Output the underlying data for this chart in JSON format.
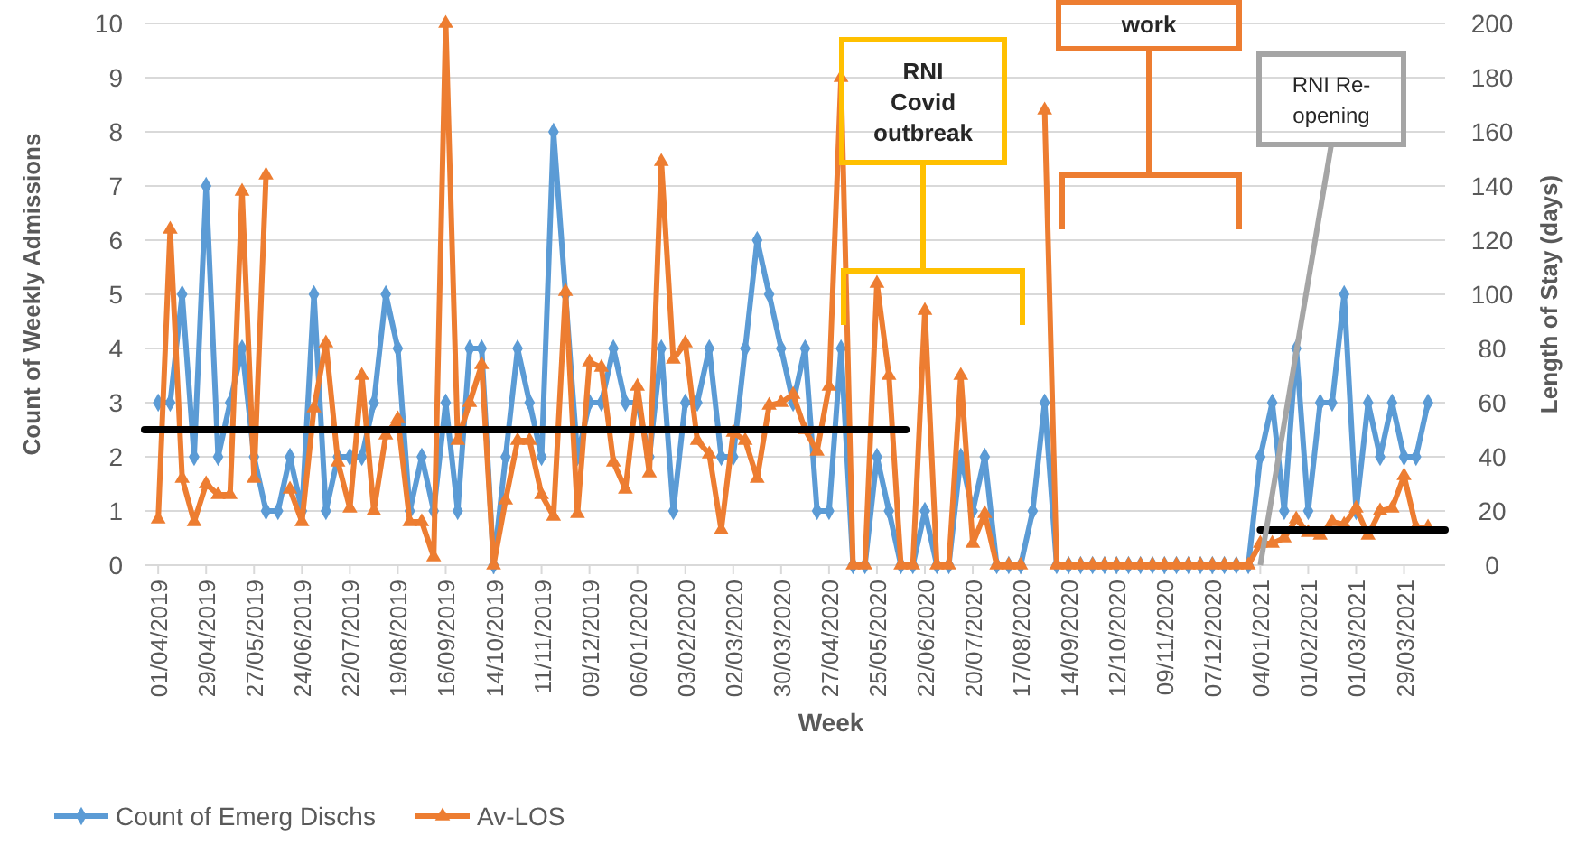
{
  "chart_data": {
    "type": "line",
    "xlabel": "Week",
    "ylabel": "Count of Weekly Admissions",
    "y2label": "Length of Stay (days)",
    "x": [
      "2019-04-01",
      "2019-04-08",
      "2019-04-15",
      "2019-04-22",
      "2019-04-29",
      "2019-05-06",
      "2019-05-13",
      "2019-05-20",
      "2019-05-27",
      "2019-06-03",
      "2019-06-10",
      "2019-06-17",
      "2019-06-24",
      "2019-07-01",
      "2019-07-08",
      "2019-07-15",
      "2019-07-22",
      "2019-07-29",
      "2019-08-05",
      "2019-08-12",
      "2019-08-19",
      "2019-08-26",
      "2019-09-02",
      "2019-09-09",
      "2019-09-16",
      "2019-09-23",
      "2019-09-30",
      "2019-10-07",
      "2019-10-14",
      "2019-10-21",
      "2019-10-28",
      "2019-11-04",
      "2019-11-11",
      "2019-11-18",
      "2019-11-25",
      "2019-12-02",
      "2019-12-09",
      "2019-12-16",
      "2019-12-23",
      "2019-12-30",
      "2020-01-06",
      "2020-01-13",
      "2020-01-20",
      "2020-01-27",
      "2020-02-03",
      "2020-02-10",
      "2020-02-17",
      "2020-02-24",
      "2020-03-02",
      "2020-03-09",
      "2020-03-16",
      "2020-03-23",
      "2020-03-30",
      "2020-04-06",
      "2020-04-13",
      "2020-04-20",
      "2020-04-27",
      "2020-05-04",
      "2020-05-11",
      "2020-05-18",
      "2020-05-25",
      "2020-06-01",
      "2020-06-08",
      "2020-06-15",
      "2020-06-22",
      "2020-06-29",
      "2020-07-06",
      "2020-07-13",
      "2020-07-20",
      "2020-07-27",
      "2020-08-03",
      "2020-08-10",
      "2020-08-17",
      "2020-08-24",
      "2020-08-31",
      "2020-09-07",
      "2020-09-14",
      "2020-09-21",
      "2020-09-28",
      "2020-10-05",
      "2020-10-12",
      "2020-10-19",
      "2020-10-26",
      "2020-11-02",
      "2020-11-09",
      "2020-11-16",
      "2020-11-23",
      "2020-11-30",
      "2020-12-07",
      "2020-12-14",
      "2020-12-21",
      "2020-12-28",
      "2021-01-04",
      "2021-01-11",
      "2021-01-18",
      "2021-01-25",
      "2021-02-01",
      "2021-02-08",
      "2021-02-15",
      "2021-02-22",
      "2021-03-01",
      "2021-03-08",
      "2021-03-15",
      "2021-03-22",
      "2021-03-29",
      "2021-04-05",
      "2021-04-12"
    ],
    "series": [
      {
        "name": "Count of Emerg Dischs",
        "color": "#5b9bd5",
        "marker": "diamond",
        "values": [
          3,
          3,
          5,
          2,
          7,
          2,
          3,
          4,
          2,
          1,
          1,
          2,
          1,
          5,
          1,
          2,
          2,
          2,
          3,
          5,
          4,
          1,
          2,
          1,
          3,
          1,
          4,
          4,
          0,
          2,
          4,
          3,
          2,
          8,
          5,
          2,
          3,
          3,
          4,
          3,
          3,
          2,
          4,
          1,
          3,
          3,
          4,
          2,
          2,
          4,
          6,
          5,
          4,
          3,
          4,
          1,
          1,
          4,
          0,
          0,
          2,
          1,
          0,
          0,
          1,
          0,
          0,
          2,
          1,
          2,
          0,
          0,
          0,
          1,
          3,
          0,
          0,
          0,
          0,
          0,
          0,
          0,
          0,
          0,
          0,
          0,
          0,
          0,
          0,
          0,
          0,
          0,
          2,
          3,
          1,
          4,
          1,
          3,
          3,
          5,
          1,
          3,
          2,
          3,
          2,
          2,
          3
        ]
      },
      {
        "name": "Av-LOS",
        "color": "#ed7d31",
        "marker": "triangle",
        "axis": "y2",
        "values": [
          17,
          124,
          32,
          16,
          30,
          26,
          26,
          138,
          32,
          144,
          null,
          28,
          16,
          58,
          82,
          38,
          21,
          70,
          20,
          48,
          54,
          16,
          16,
          3,
          200,
          46,
          60,
          74,
          0,
          24,
          46,
          46,
          26,
          18,
          101,
          19,
          75,
          73,
          38,
          28,
          66,
          34,
          149,
          76,
          82,
          46,
          41,
          13,
          49,
          46,
          32,
          59,
          60,
          63,
          50,
          42,
          66,
          180,
          0,
          0,
          104,
          70,
          0,
          0,
          94,
          0,
          0,
          70,
          8,
          19,
          0,
          0,
          0,
          null,
          168,
          0,
          0,
          0,
          0,
          0,
          0,
          0,
          0,
          0,
          0,
          0,
          0,
          0,
          0,
          0,
          0,
          0,
          8,
          8,
          10,
          17,
          12,
          11,
          16,
          15,
          21,
          11,
          20,
          21,
          33,
          14,
          14
        ]
      },
      {
        "type": "line",
        "color": "#000000",
        "marker": "none",
        "x": [
          "2019-03-24",
          "2020-06-11"
        ],
        "values": [
          2.5,
          2.5
        ]
      },
      {
        "type": "line",
        "color": "#000000",
        "marker": "none",
        "axis": "y2",
        "x": [
          "2021-01-04",
          "2021-04-22"
        ],
        "values": [
          13,
          13
        ]
      }
    ],
    "xlim": [
      "2019-03-24",
      "2021-04-22"
    ],
    "xticks": [
      {
        "value": "2019-04-01",
        "label": "01/04/2019"
      },
      {
        "value": "2019-04-29",
        "label": "29/04/2019"
      },
      {
        "value": "2019-05-27",
        "label": "27/05/2019"
      },
      {
        "value": "2019-06-24",
        "label": "24/06/2019"
      },
      {
        "value": "2019-07-22",
        "label": "22/07/2019"
      },
      {
        "value": "2019-08-19",
        "label": "19/08/2019"
      },
      {
        "value": "2019-09-16",
        "label": "16/09/2019"
      },
      {
        "value": "2019-10-14",
        "label": "14/10/2019"
      },
      {
        "value": "2019-11-11",
        "label": "11/11/2019"
      },
      {
        "value": "2019-12-09",
        "label": "09/12/2019"
      },
      {
        "value": "2020-01-06",
        "label": "06/01/2020"
      },
      {
        "value": "2020-02-03",
        "label": "03/02/2020"
      },
      {
        "value": "2020-03-02",
        "label": "02/03/2020"
      },
      {
        "value": "2020-03-30",
        "label": "30/03/2020"
      },
      {
        "value": "2020-04-27",
        "label": "27/04/2020"
      },
      {
        "value": "2020-05-25",
        "label": "25/05/2020"
      },
      {
        "value": "2020-06-22",
        "label": "22/06/2020"
      },
      {
        "value": "2020-07-20",
        "label": "20/07/2020"
      },
      {
        "value": "2020-08-17",
        "label": "17/08/2020"
      },
      {
        "value": "2020-09-14",
        "label": "14/09/2020"
      },
      {
        "value": "2020-10-12",
        "label": "12/10/2020"
      },
      {
        "value": "2020-11-09",
        "label": "09/11/2020"
      },
      {
        "value": "2020-12-07",
        "label": "07/12/2020"
      },
      {
        "value": "2021-01-04",
        "label": "04/01/2021"
      },
      {
        "value": "2021-02-01",
        "label": "01/02/2021"
      },
      {
        "value": "2021-03-01",
        "label": "01/03/2021"
      },
      {
        "value": "2021-03-29",
        "label": "29/03/2021"
      }
    ],
    "ylim": [
      0,
      10
    ],
    "yticks": [
      0,
      1,
      2,
      3,
      4,
      5,
      6,
      7,
      8,
      9,
      10
    ],
    "y2lim": [
      0,
      200
    ],
    "y2ticks": [
      0,
      20,
      40,
      60,
      80,
      100,
      120,
      140,
      160,
      180,
      200
    ],
    "grid": "y",
    "legend": "bottom",
    "annotations": [
      "RNI Covid outbreak",
      "work",
      {
        "text": "RNI Re-opening",
        "x": "2021-01-04",
        "y": 0
      }
    ]
  }
}
